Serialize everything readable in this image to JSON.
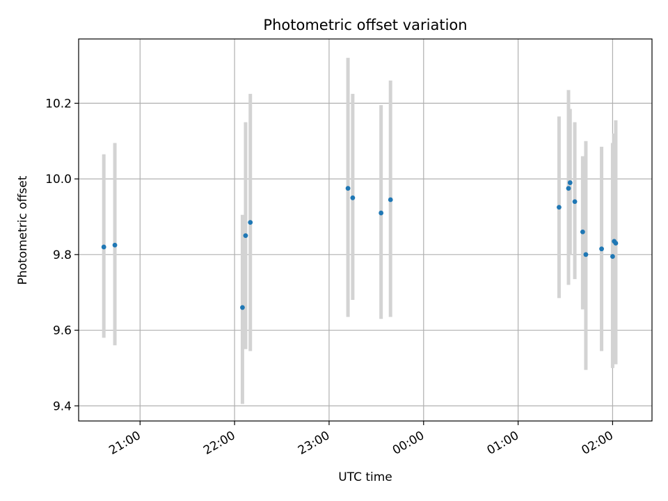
{
  "chart_data": {
    "type": "scatter",
    "title": "Photometric offset variation",
    "xlabel": "UTC time",
    "ylabel": "Photometric offset",
    "grid": true,
    "x_unit": "UTC time (hours after 00:00; values past midnight continue >24)",
    "xlim": [
      "20:21",
      "02:25"
    ],
    "ylim": [
      9.36,
      10.37
    ],
    "x_ticks": [
      "21:00",
      "22:00",
      "23:00",
      "00:00",
      "01:00",
      "02:00"
    ],
    "y_ticks": [
      "9.4",
      "9.6",
      "9.8",
      "10.0",
      "10.2"
    ],
    "colors": {
      "points": "#1f77b4",
      "errorbars": "#d3d3d3",
      "grid": "#b0b0b0"
    },
    "points": [
      {
        "x": "20:37",
        "y": 9.82,
        "ylow": 9.58,
        "yhigh": 10.065
      },
      {
        "x": "20:44",
        "y": 9.825,
        "ylow": 9.56,
        "yhigh": 10.095
      },
      {
        "x": "22:05",
        "y": 9.66,
        "ylow": 9.405,
        "yhigh": 9.905
      },
      {
        "x": "22:07",
        "y": 9.85,
        "ylow": 9.55,
        "yhigh": 10.15
      },
      {
        "x": "22:10",
        "y": 9.885,
        "ylow": 9.545,
        "yhigh": 10.225
      },
      {
        "x": "23:12",
        "y": 9.975,
        "ylow": 9.635,
        "yhigh": 10.32
      },
      {
        "x": "23:15",
        "y": 9.95,
        "ylow": 9.68,
        "yhigh": 10.225
      },
      {
        "x": "23:33",
        "y": 9.91,
        "ylow": 9.63,
        "yhigh": 10.195
      },
      {
        "x": "23:39",
        "y": 9.945,
        "ylow": 9.635,
        "yhigh": 10.26
      },
      {
        "x": "01:26",
        "y": 9.925,
        "ylow": 9.685,
        "yhigh": 10.165
      },
      {
        "x": "01:32",
        "y": 9.975,
        "ylow": 9.72,
        "yhigh": 10.235
      },
      {
        "x": "01:33",
        "y": 9.99,
        "ylow": 9.8,
        "yhigh": 10.185
      },
      {
        "x": "01:36",
        "y": 9.94,
        "ylow": 9.735,
        "yhigh": 10.15
      },
      {
        "x": "01:41",
        "y": 9.86,
        "ylow": 9.655,
        "yhigh": 10.06
      },
      {
        "x": "01:43",
        "y": 9.8,
        "ylow": 9.495,
        "yhigh": 10.1
      },
      {
        "x": "01:53",
        "y": 9.815,
        "ylow": 9.545,
        "yhigh": 10.085
      },
      {
        "x": "02:00",
        "y": 9.795,
        "ylow": 9.5,
        "yhigh": 10.095
      },
      {
        "x": "02:01",
        "y": 9.835,
        "ylow": 9.51,
        "yhigh": 10.12
      },
      {
        "x": "02:02",
        "y": 9.83,
        "ylow": 9.51,
        "yhigh": 10.155
      }
    ]
  }
}
